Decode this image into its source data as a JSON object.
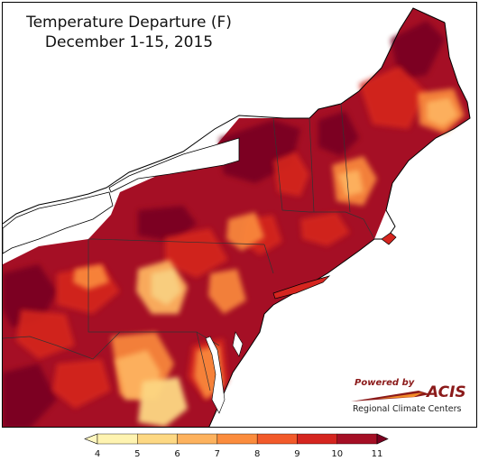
{
  "title": {
    "line1": "Temperature Departure (F)",
    "line2": "December 1-15, 2015"
  },
  "logo": {
    "powered_by": "Powered by",
    "name": "ACIS",
    "subtitle": "Regional Climate Centers"
  },
  "legend": {
    "ticks": [
      "4",
      "5",
      "6",
      "7",
      "8",
      "9",
      "10",
      "11"
    ],
    "colors": [
      "#fef3b0",
      "#fdd883",
      "#fdb25e",
      "#fb8c3d",
      "#f25a2a",
      "#d5251f",
      "#a50f25",
      "#7a0020"
    ],
    "under_color": "#fff7c0",
    "over_color": "#7a0020"
  },
  "map": {
    "lake_color": "#ffffff",
    "background_color": "#a50f25"
  }
}
